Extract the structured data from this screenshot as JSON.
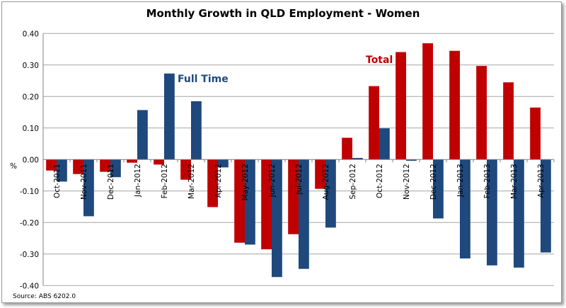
{
  "chart_data": {
    "type": "bar",
    "title": "Monthly Growth in QLD Employment - Women",
    "ylabel": "%",
    "xlabel": "",
    "ylim": [
      -0.4,
      0.4
    ],
    "yticks": [
      "0.40",
      "0.30",
      "0.20",
      "0.10",
      "0.00",
      "-0.10",
      "-0.20",
      "-0.30",
      "-0.40"
    ],
    "grid": true,
    "legend": "inline labels",
    "source": "Source: ABS 6202.0",
    "categories": [
      "Oct-2011",
      "Nov-2011",
      "Dec-2011",
      "Jan-2012",
      "Feb-2012",
      "Mar-2012",
      "Apr-2012",
      "May-2012",
      "Jun-2012",
      "Jul-2012",
      "Aug-2012",
      "Sep-2012",
      "Oct-2012",
      "Nov-2012",
      "Dec-2012",
      "Jan-2013",
      "Feb-2013",
      "Mar-2013",
      "Apr-2013"
    ],
    "series": [
      {
        "name": "Total",
        "color": "#c00000",
        "values": [
          -0.035,
          -0.046,
          -0.039,
          -0.01,
          -0.016,
          -0.064,
          -0.151,
          -0.264,
          -0.285,
          -0.237,
          -0.093,
          0.069,
          0.233,
          0.341,
          0.369,
          0.345,
          0.297,
          0.245,
          0.165
        ]
      },
      {
        "name": "Full Time",
        "color": "#1f497d",
        "values": [
          -0.07,
          -0.18,
          -0.056,
          0.157,
          0.273,
          0.185,
          -0.025,
          -0.27,
          -0.373,
          -0.347,
          -0.216,
          0.005,
          0.099,
          -0.004,
          -0.187,
          -0.314,
          -0.336,
          -0.343,
          -0.295
        ]
      }
    ]
  }
}
